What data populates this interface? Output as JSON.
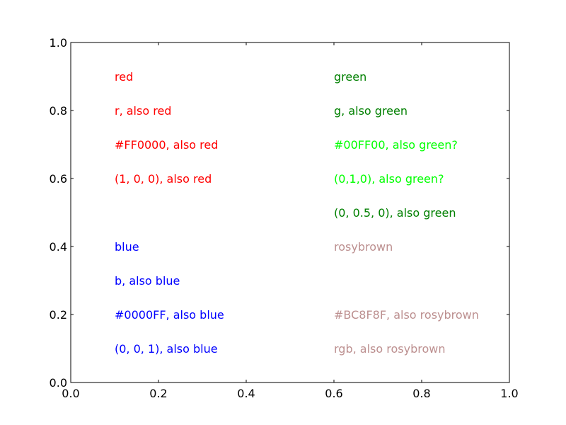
{
  "chart_data": {
    "type": "scatter",
    "title": "",
    "xlabel": "",
    "ylabel": "",
    "xlim": [
      0.0,
      1.0
    ],
    "ylim": [
      0.0,
      1.0
    ],
    "grid": false,
    "x_ticks": [
      "0.0",
      "0.2",
      "0.4",
      "0.6",
      "0.8",
      "1.0"
    ],
    "y_ticks": [
      "0.0",
      "0.2",
      "0.4",
      "0.6",
      "0.8",
      "1.0"
    ],
    "annotations": [
      {
        "text": "red",
        "x": 0.1,
        "y": 0.9,
        "color": "#ff0000"
      },
      {
        "text": "r, also red",
        "x": 0.1,
        "y": 0.8,
        "color": "#ff0000"
      },
      {
        "text": "#FF0000, also red",
        "x": 0.1,
        "y": 0.7,
        "color": "#ff0000"
      },
      {
        "text": "(1, 0, 0), also red",
        "x": 0.1,
        "y": 0.6,
        "color": "#ff0000"
      },
      {
        "text": "blue",
        "x": 0.1,
        "y": 0.4,
        "color": "#0000ff"
      },
      {
        "text": "b, also blue",
        "x": 0.1,
        "y": 0.3,
        "color": "#0000ff"
      },
      {
        "text": "#0000FF, also blue",
        "x": 0.1,
        "y": 0.2,
        "color": "#0000ff"
      },
      {
        "text": "(0, 0, 1), also blue",
        "x": 0.1,
        "y": 0.1,
        "color": "#0000ff"
      },
      {
        "text": "green",
        "x": 0.6,
        "y": 0.9,
        "color": "#008000"
      },
      {
        "text": "g, also green",
        "x": 0.6,
        "y": 0.8,
        "color": "#008000"
      },
      {
        "text": "#00FF00, also green?",
        "x": 0.6,
        "y": 0.7,
        "color": "#00ff00"
      },
      {
        "text": "(0,1,0), also green?",
        "x": 0.6,
        "y": 0.6,
        "color": "#00ff00"
      },
      {
        "text": "(0, 0.5, 0), also green",
        "x": 0.6,
        "y": 0.5,
        "color": "#008000"
      },
      {
        "text": "rosybrown",
        "x": 0.6,
        "y": 0.4,
        "color": "#bc8f8f"
      },
      {
        "text": "#BC8F8F, also rosybrown",
        "x": 0.6,
        "y": 0.2,
        "color": "#bc8f8f"
      },
      {
        "text": "rgb, also rosybrown",
        "x": 0.6,
        "y": 0.1,
        "color": "#bc8f8f"
      }
    ]
  }
}
